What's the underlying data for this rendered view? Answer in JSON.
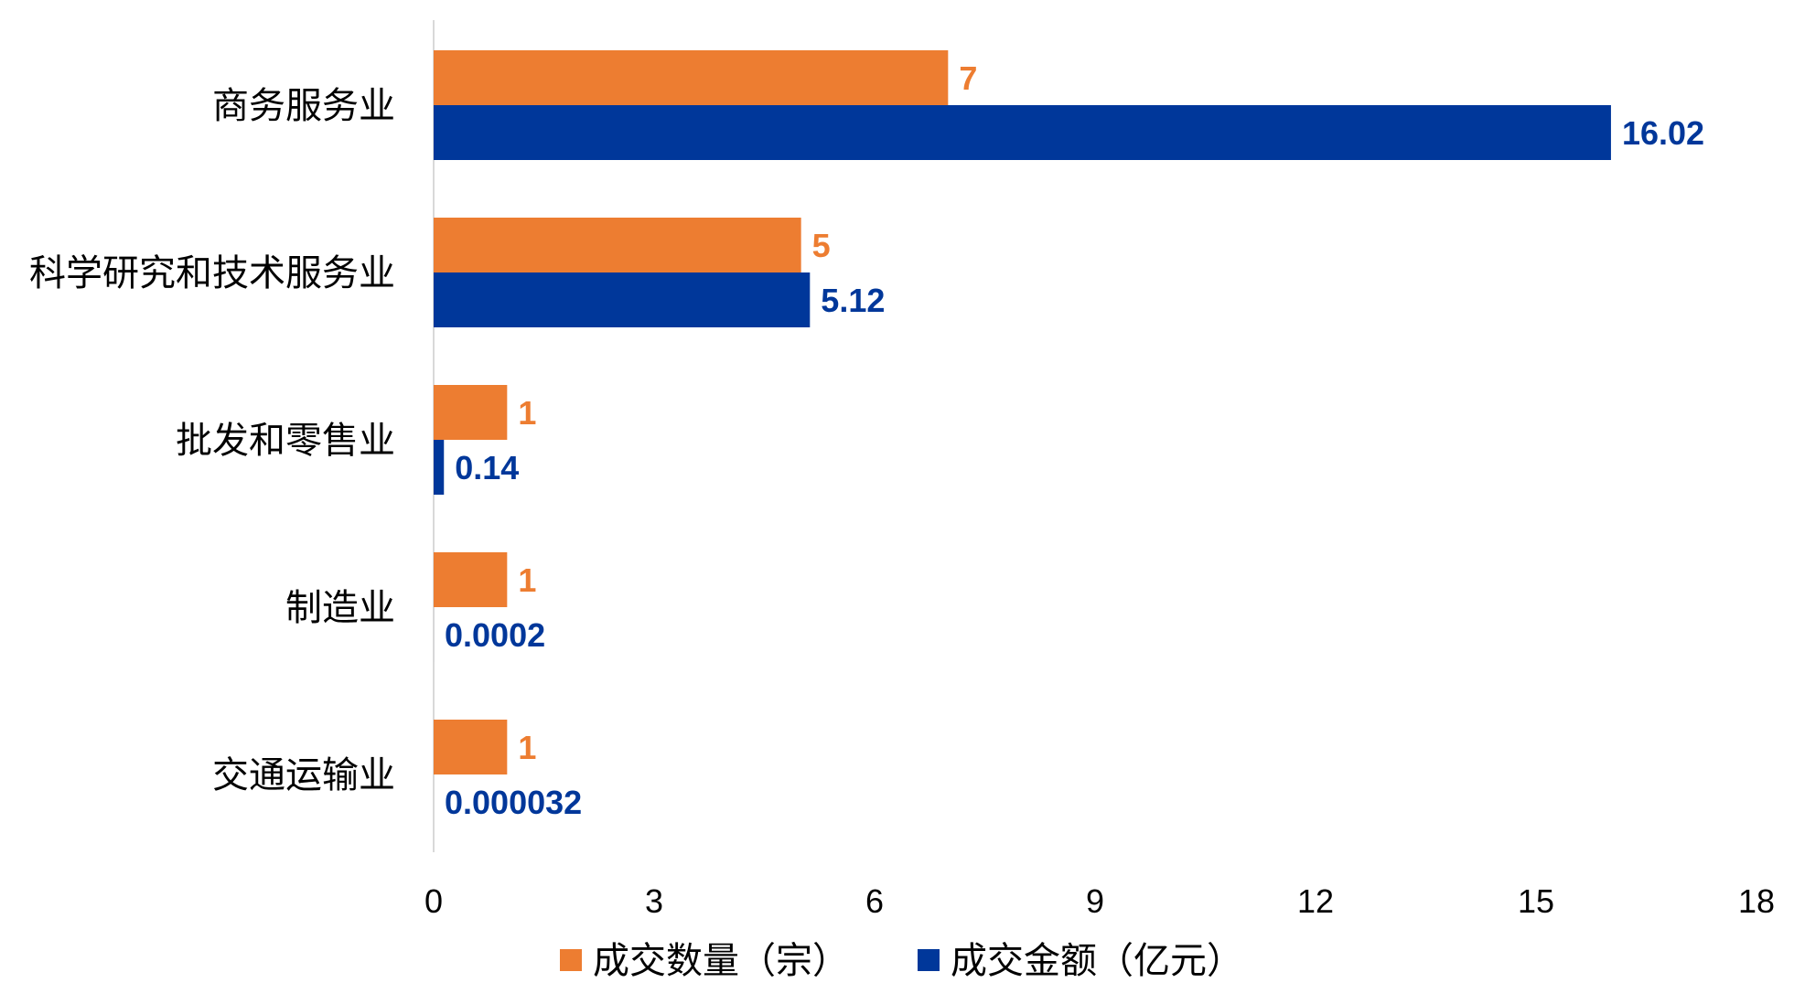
{
  "chart_data": {
    "type": "bar",
    "orientation": "horizontal",
    "categories": [
      "商务服务业",
      "科学研究和技术服务业",
      "批发和零售业",
      "制造业",
      "交通运输业"
    ],
    "series": [
      {
        "name": "成交数量（宗）",
        "color": "#ED7D31",
        "values": [
          7,
          5,
          1,
          1,
          1
        ],
        "labels": [
          "7",
          "5",
          "1",
          "1",
          "1"
        ]
      },
      {
        "name": "成交金额（亿元）",
        "color": "#00379A",
        "values": [
          16.02,
          5.12,
          0.14,
          0.0002,
          3.2e-05
        ],
        "labels": [
          "16.02",
          "5.12",
          "0.14",
          "0.0002",
          "0.000032"
        ]
      }
    ],
    "xlim": [
      0,
      18
    ],
    "xticks": [
      "0",
      "3",
      "6",
      "9",
      "12",
      "15",
      "18"
    ],
    "grid": false,
    "legend_position": "bottom"
  }
}
